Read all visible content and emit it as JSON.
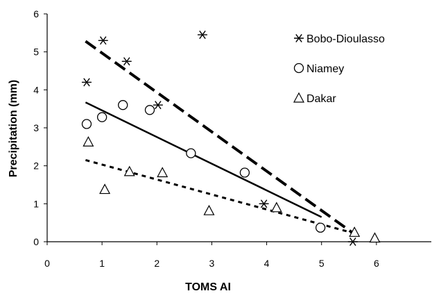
{
  "chart_data": {
    "type": "scatter",
    "xlabel": "TOMS AI",
    "ylabel": "Precipitation (mm)",
    "xlim": [
      0,
      7
    ],
    "ylim": [
      0,
      6
    ],
    "x_ticks": [
      0,
      1,
      2,
      3,
      4,
      5,
      6
    ],
    "y_ticks": [
      0,
      1,
      2,
      3,
      4,
      5,
      6
    ],
    "grid": false,
    "legend_position": "top-right",
    "series": [
      {
        "name": "Bobo-Dioulasso",
        "marker": "asterisk",
        "points": [
          [
            0.72,
            4.2
          ],
          [
            1.02,
            5.3
          ],
          [
            1.45,
            4.75
          ],
          [
            2.02,
            3.6
          ],
          [
            2.83,
            5.45
          ],
          [
            3.95,
            1.0
          ],
          [
            5.57,
            0.0
          ]
        ],
        "trend": {
          "x": [
            0.7,
            5.6
          ],
          "y": [
            5.28,
            0.2
          ],
          "style": "long-dash"
        }
      },
      {
        "name": "Niamey",
        "marker": "circle",
        "points": [
          [
            0.72,
            3.1
          ],
          [
            1.0,
            3.28
          ],
          [
            1.38,
            3.6
          ],
          [
            1.87,
            3.47
          ],
          [
            2.62,
            2.33
          ],
          [
            3.6,
            1.82
          ],
          [
            4.98,
            0.37
          ]
        ],
        "trend": {
          "x": [
            0.7,
            5.0
          ],
          "y": [
            3.67,
            0.65
          ],
          "style": "solid"
        }
      },
      {
        "name": "Dakar",
        "marker": "triangle",
        "points": [
          [
            0.75,
            2.63
          ],
          [
            1.05,
            1.38
          ],
          [
            1.5,
            1.85
          ],
          [
            2.1,
            1.82
          ],
          [
            2.95,
            0.82
          ],
          [
            4.18,
            0.9
          ],
          [
            5.6,
            0.25
          ],
          [
            5.97,
            0.1
          ]
        ],
        "trend": {
          "x": [
            0.7,
            5.6
          ],
          "y": [
            2.15,
            0.22
          ],
          "style": "short-dash"
        }
      }
    ]
  }
}
